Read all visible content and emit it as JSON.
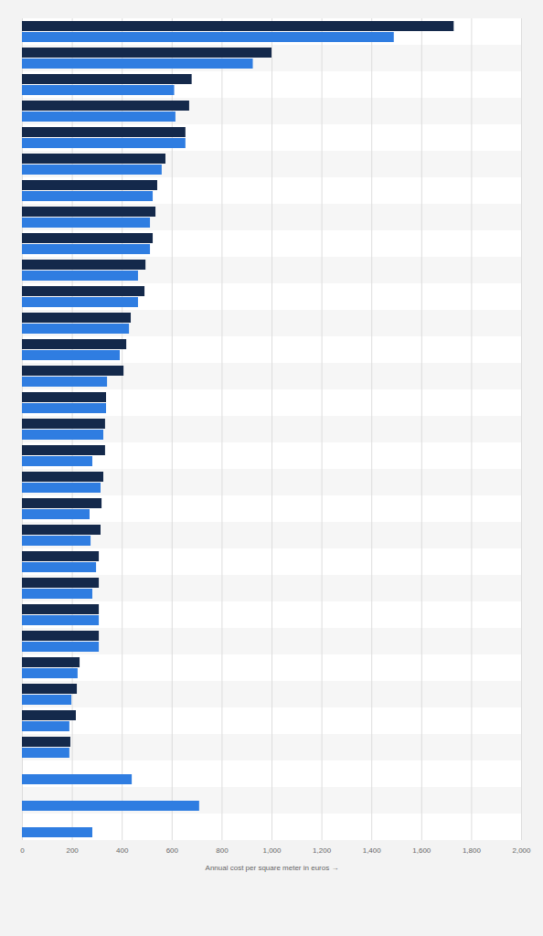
{
  "chart_data": {
    "type": "bar",
    "orientation": "horizontal",
    "x_label": "Annual cost per square meter in euros",
    "categories": [
      null,
      null,
      null,
      null,
      null,
      null,
      null,
      null,
      null,
      null,
      null,
      null,
      null,
      null,
      null,
      null,
      null,
      null,
      null,
      null,
      null,
      null,
      null,
      null,
      null,
      null,
      null,
      null,
      null,
      null,
      null
    ],
    "series": [
      {
        "color": "#14294b",
        "values": [
          1730,
          1000,
          680,
          670,
          655,
          575,
          542,
          535,
          524,
          495,
          491,
          436,
          418,
          407,
          337,
          333,
          333,
          326,
          319,
          315,
          308,
          308,
          308,
          308,
          231,
          220,
          216,
          194,
          null,
          null,
          null
        ]
      },
      {
        "color": "#2f7de1",
        "values": [
          1490,
          925,
          610,
          615,
          655,
          560,
          524,
          513,
          513,
          465,
          465,
          429,
          392,
          341,
          337,
          326,
          282,
          315,
          271,
          275,
          297,
          282,
          308,
          308,
          223,
          198,
          190,
          190,
          440,
          710,
          282
        ]
      }
    ],
    "xlim": [
      0,
      2000
    ],
    "xticks": [
      0,
      200,
      400,
      600,
      800,
      {
        "value": 1000,
        "label": "1,000"
      },
      {
        "value": 1200,
        "label": "1,200"
      },
      {
        "value": 1400,
        "label": "1,400"
      },
      {
        "value": 1600,
        "label": "1,600"
      },
      {
        "value": 1800,
        "label": "1,800"
      },
      {
        "value": 2000,
        "label": "2,000"
      }
    ],
    "grid": true,
    "tick_labels": "x"
  }
}
